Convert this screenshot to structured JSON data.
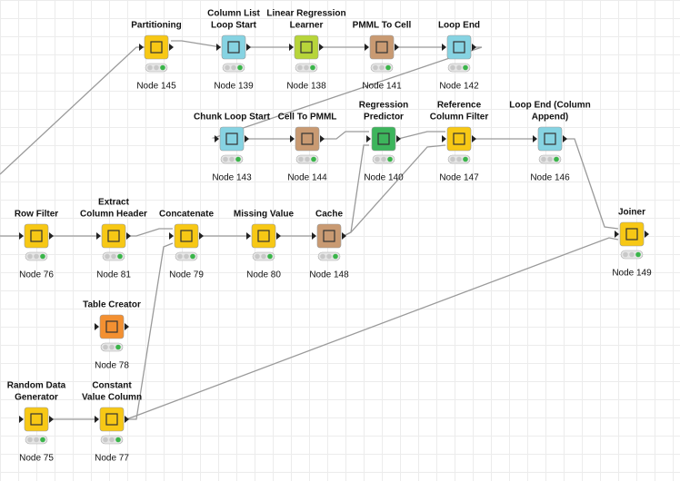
{
  "nodes": [
    {
      "title": [
        "Partitioning"
      ],
      "label": "Node 145"
    },
    {
      "title": [
        "Column List",
        "Loop Start"
      ],
      "label": "Node 139"
    },
    {
      "title": [
        "Linear Regression",
        "Learner"
      ],
      "label": "Node 138"
    },
    {
      "title": [
        "PMML To Cell"
      ],
      "label": "Node 141"
    },
    {
      "title": [
        "Loop End"
      ],
      "label": "Node 142"
    },
    {
      "title": [
        "Chunk Loop Start"
      ],
      "label": "Node 143"
    },
    {
      "title": [
        "Cell To PMML"
      ],
      "label": "Node 144"
    },
    {
      "title": [
        "Regression",
        "Predictor"
      ],
      "label": "Node 140"
    },
    {
      "title": [
        "Reference",
        "Column Filter"
      ],
      "label": "Node 147"
    },
    {
      "title": [
        "Loop End (Column",
        "Append)"
      ],
      "label": "Node 146"
    },
    {
      "title": [
        "Row Filter"
      ],
      "label": "Node 76"
    },
    {
      "title": [
        "Extract",
        "Column Header"
      ],
      "label": "Node 81"
    },
    {
      "title": [
        "Concatenate"
      ],
      "label": "Node 79"
    },
    {
      "title": [
        "Missing Value"
      ],
      "label": "Node 80"
    },
    {
      "title": [
        "Cache"
      ],
      "label": "Node 148"
    },
    {
      "title": [
        "Joiner"
      ],
      "label": "Node 149"
    },
    {
      "title": [
        "Table Creator"
      ],
      "label": "Node 78"
    },
    {
      "title": [
        "Random Data",
        "Generator"
      ],
      "label": "Node 75"
    },
    {
      "title": [
        "Constant",
        "Value Column"
      ],
      "label": "Node 77"
    }
  ]
}
